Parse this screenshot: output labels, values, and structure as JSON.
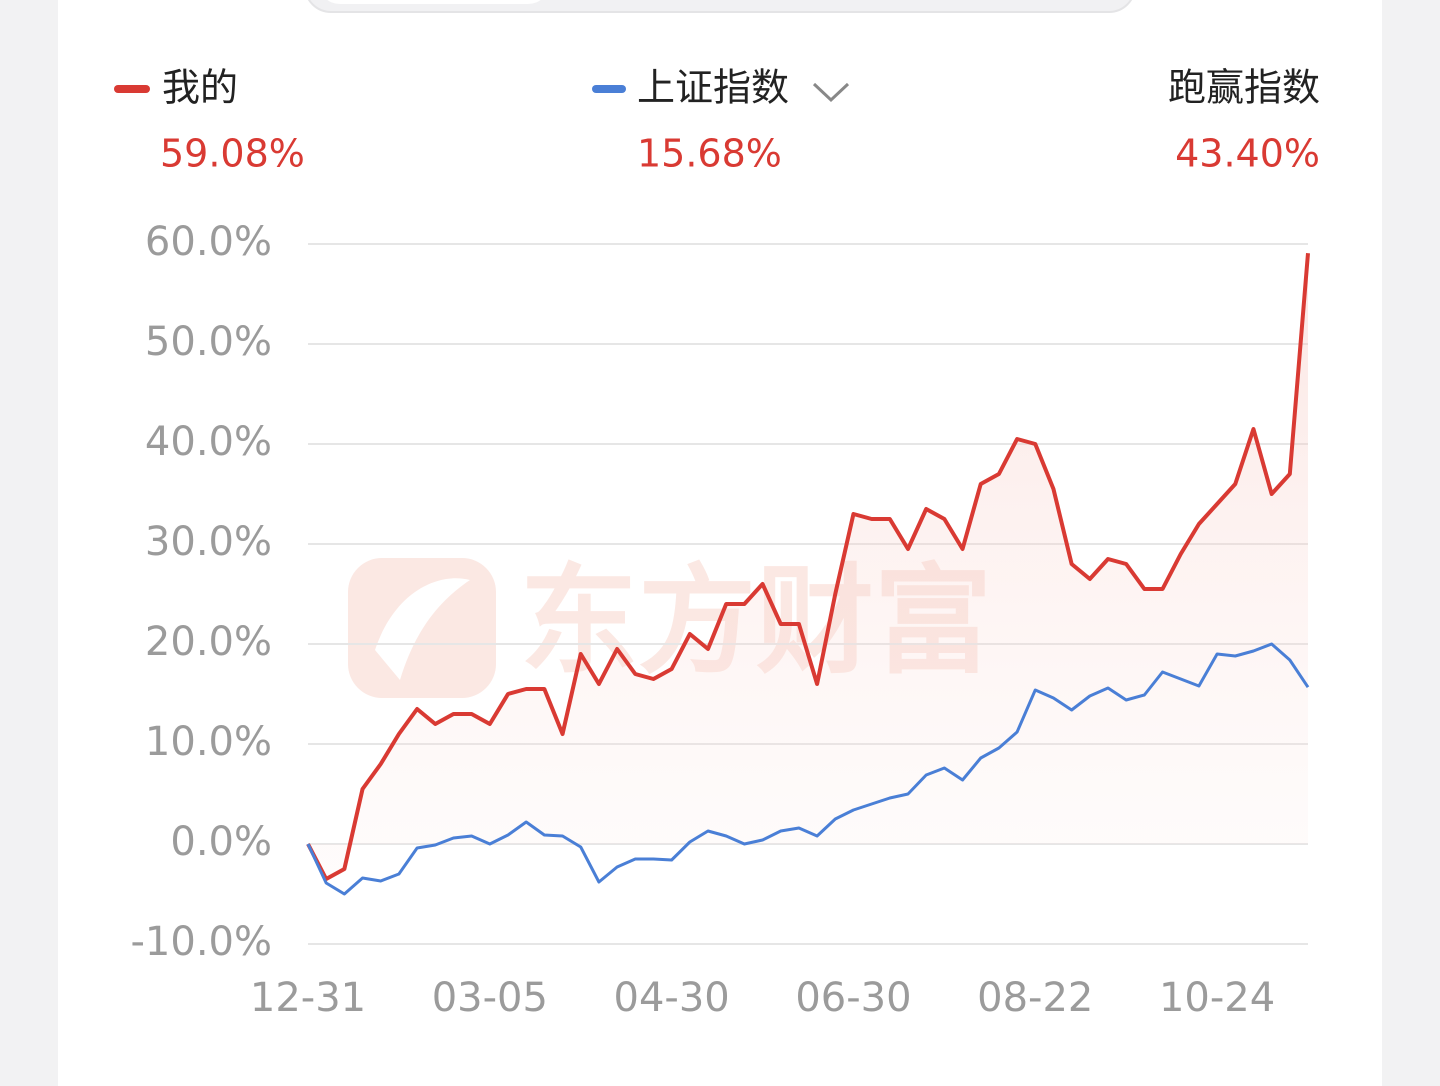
{
  "chart_data": {
    "type": "line",
    "categories": [
      "12-31",
      null,
      null,
      null,
      null,
      null,
      null,
      null,
      null,
      null,
      "03-05",
      null,
      null,
      null,
      null,
      null,
      null,
      null,
      null,
      null,
      "04-30",
      null,
      null,
      null,
      null,
      null,
      null,
      null,
      null,
      null,
      "06-30",
      null,
      null,
      null,
      null,
      null,
      null,
      null,
      null,
      null,
      "08-22",
      null,
      null,
      null,
      null,
      null,
      null,
      null,
      null,
      null,
      "10-24",
      null,
      null,
      null,
      null,
      null
    ],
    "series": [
      {
        "name": "我的",
        "color": "#d93a33",
        "total_label": "59.08%",
        "area": true,
        "values": [
          0,
          -3.5,
          -2.5,
          5.5,
          8,
          11,
          13.5,
          12,
          13,
          13,
          12,
          15,
          15.5,
          15.5,
          11,
          19,
          16,
          19.5,
          17,
          16.5,
          17.5,
          21,
          19.5,
          24,
          24,
          26,
          22,
          22,
          16,
          25,
          33,
          32.5,
          32.5,
          29.5,
          33.5,
          32.5,
          29.5,
          36,
          37,
          40.5,
          40,
          35.5,
          28,
          26.5,
          28.5,
          28,
          25.5,
          25.5,
          29,
          32,
          34,
          36,
          41.5,
          35,
          37,
          59.08
        ]
      },
      {
        "name": "上证指数",
        "color": "#4a7fd6",
        "total_label": "15.68%",
        "area": false,
        "values": [
          0,
          -3.9,
          -5,
          -3.4,
          -3.7,
          -3,
          -0.4,
          -0.1,
          0.6,
          0.8,
          0,
          0.9,
          2.2,
          0.9,
          0.8,
          -0.3,
          -3.8,
          -2.3,
          -1.5,
          -1.5,
          -1.6,
          0.2,
          1.3,
          0.8,
          0,
          0.4,
          1.3,
          1.6,
          0.8,
          2.5,
          3.4,
          4,
          4.6,
          5,
          6.9,
          7.6,
          6.4,
          8.6,
          9.6,
          11.2,
          15.4,
          14.6,
          13.4,
          14.8,
          15.6,
          14.4,
          14.9,
          17.2,
          16.5,
          15.8,
          19,
          18.8,
          19.3,
          20,
          18.4,
          15.68
        ]
      }
    ],
    "excess": {
      "label": "跑赢指数",
      "total_label": "43.40%"
    },
    "watermark": "东方财富",
    "ylim": [
      -10,
      60
    ],
    "yticks": [
      {
        "value": -10,
        "label": "-10.0%"
      },
      {
        "value": 0,
        "label": "0.0%"
      },
      {
        "value": 10,
        "label": "10.0%"
      },
      {
        "value": 20,
        "label": "20.0%"
      },
      {
        "value": 30,
        "label": "30.0%"
      },
      {
        "value": 40,
        "label": "40.0%"
      },
      {
        "value": 50,
        "label": "50.0%"
      },
      {
        "value": 60,
        "label": "60.0%"
      }
    ],
    "grid": true
  }
}
